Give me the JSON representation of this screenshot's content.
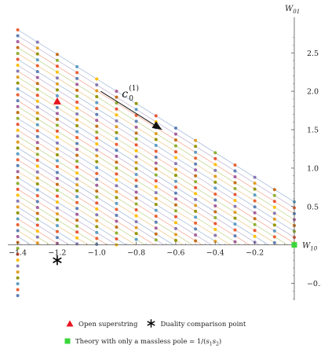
{
  "chart_data": {
    "type": "scatter",
    "x_axis": {
      "label_base": "W",
      "label_sub": "10",
      "range": [
        -1.45,
        0.02
      ],
      "ticks": [
        {
          "v": -1.4,
          "t": "−1.4"
        },
        {
          "v": -1.2,
          "t": "−1.2"
        },
        {
          "v": -1.0,
          "t": "−1.0"
        },
        {
          "v": -0.8,
          "t": "−0.8"
        },
        {
          "v": -0.6,
          "t": "−0.6"
        },
        {
          "v": -0.4,
          "t": "−0.4"
        },
        {
          "v": -0.2,
          "t": "−0.2"
        }
      ]
    },
    "y_axis": {
      "label_base": "W",
      "label_sub": "01",
      "range": [
        -0.72,
        2.82
      ],
      "ticks": [
        {
          "v": -0.5,
          "t": "−0.5"
        },
        {
          "v": 0.5,
          "t": "0.5"
        },
        {
          "v": 1.0,
          "t": "1.0"
        },
        {
          "v": 1.5,
          "t": "1.5"
        },
        {
          "v": 2.0,
          "t": "2.0"
        },
        {
          "v": 2.5,
          "t": "2.5"
        }
      ]
    },
    "line_family": {
      "slope": -1.6,
      "x_start": -1.4,
      "x_end_limit": 0.0,
      "intercept_at_x_start": {
        "min": -0.66,
        "max": 2.8,
        "count": 46
      },
      "point_spacing_x": 0.1
    },
    "series_colors": [
      "#5e81b5",
      "#e19c24",
      "#8fb032",
      "#eb6235",
      "#8778b3",
      "#c56e1a",
      "#5d9ec7",
      "#ffbf00",
      "#a5609d",
      "#929600",
      "#e95536"
    ],
    "line_colors": [
      "#a8bedc",
      "#f0cd92",
      "#c7d899",
      "#f5b09a",
      "#c3bbd9"
    ],
    "markers": [
      {
        "name": "Open superstring",
        "shape": "triangle",
        "color": "#e8141e",
        "x": -1.2,
        "y": 1.87
      },
      {
        "name": "Duality comparison point",
        "shape": "star",
        "color": "#000000",
        "x": -1.2,
        "y": -0.2
      },
      {
        "name": "Theory with only a massless pole",
        "shape": "square",
        "color": "#3bd63b",
        "x": 0.0,
        "y": 0.0
      }
    ],
    "annotation": {
      "base": "c",
      "sub": "0",
      "sup": "(1)",
      "arrow_from": [
        -0.98,
        2.0
      ],
      "arrow_to": [
        -0.67,
        1.5
      ]
    }
  },
  "legend": {
    "open_superstring": "Open superstring",
    "duality_point": "Duality comparison point",
    "massless_pole_text": "Theory with only a massless pole = 1/(",
    "s1": "s",
    "s1_sub": "1",
    "s2": "s",
    "s2_sub": "2",
    "close": ")"
  }
}
